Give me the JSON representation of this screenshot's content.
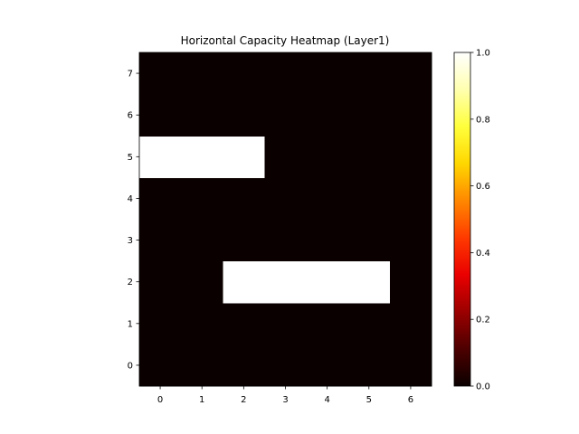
{
  "chart_data": {
    "type": "heatmap",
    "title": "Horizontal Capacity Heatmap (Layer1)",
    "xlabel": "",
    "ylabel": "",
    "x": [
      0,
      1,
      2,
      3,
      4,
      5,
      6
    ],
    "y": [
      0,
      1,
      2,
      3,
      4,
      5,
      6,
      7
    ],
    "xlim": [
      -0.5,
      6.5
    ],
    "ylim": [
      -0.5,
      7.5
    ],
    "origin": "lower",
    "values": [
      [
        0,
        0,
        0,
        0,
        0,
        0,
        0
      ],
      [
        0,
        0,
        0,
        0,
        0,
        0,
        0
      ],
      [
        0,
        0,
        1,
        1,
        1,
        1,
        0
      ],
      [
        0,
        0,
        0,
        0,
        0,
        0,
        0
      ],
      [
        0,
        0,
        0,
        0,
        0,
        0,
        0
      ],
      [
        1,
        1,
        1,
        0,
        0,
        0,
        0
      ],
      [
        0,
        0,
        0,
        0,
        0,
        0,
        0
      ],
      [
        0,
        0,
        0,
        0,
        0,
        0,
        0
      ]
    ],
    "colormap": "hot",
    "colormap_stops": [
      "#0b0000",
      "#4d0000",
      "#9b0000",
      "#ea0000",
      "#ff3a00",
      "#ff8800",
      "#ffd700",
      "#ffff3c",
      "#ffffb0",
      "#ffffff"
    ],
    "vmin": 0.0,
    "vmax": 1.0,
    "colorbar_ticks": [
      "0.0",
      "0.2",
      "0.4",
      "0.6",
      "0.8",
      "1.0"
    ],
    "grid": false,
    "legend": "colorbar-right"
  }
}
